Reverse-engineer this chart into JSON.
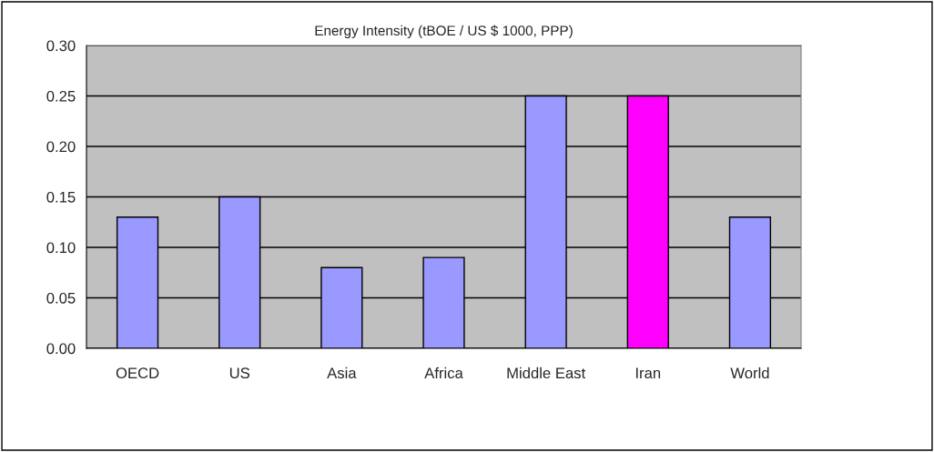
{
  "chart_data": {
    "type": "bar",
    "title": "Energy Intensity (tBOE / US $ 1000, PPP)",
    "categories": [
      "OECD",
      "US",
      "Asia",
      "Africa",
      "Middle East",
      "Iran",
      "World"
    ],
    "values": [
      0.13,
      0.15,
      0.08,
      0.09,
      0.25,
      0.25,
      0.13
    ],
    "colors": [
      "#9999ff",
      "#9999ff",
      "#9999ff",
      "#9999ff",
      "#9999ff",
      "#ff00ff",
      "#9999ff"
    ],
    "ylim": [
      0,
      0.3
    ],
    "yticks": [
      {
        "value": 0,
        "label": "0.00"
      },
      {
        "value": 0.05,
        "label": "0.05"
      },
      {
        "value": 0.1,
        "label": "0.10"
      },
      {
        "value": 0.15,
        "label": "0.15"
      },
      {
        "value": 0.2,
        "label": "0.20"
      },
      {
        "value": 0.25,
        "label": "0.25"
      },
      {
        "value": 0.3,
        "label": "0.30"
      }
    ],
    "grid": "y"
  }
}
